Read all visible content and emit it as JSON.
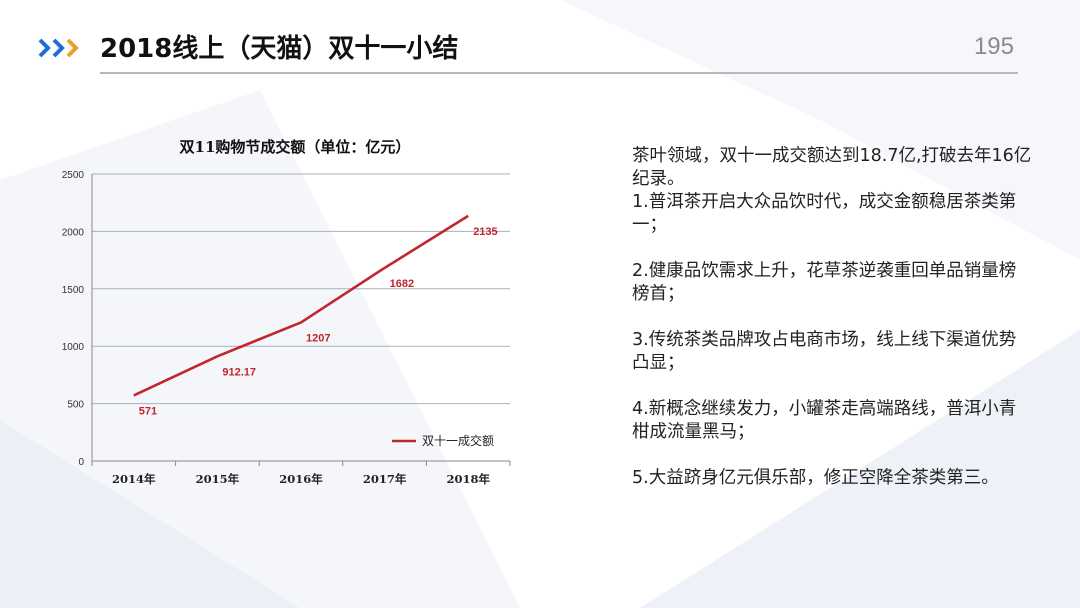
{
  "header": {
    "title": "2018线上（天猫）双十一小结",
    "page_number": "195",
    "accent_blue": "#1f6fd1",
    "accent_orange": "#f0a020"
  },
  "chart_data": {
    "type": "line",
    "title": "双11购物节成交额（单位：亿元）",
    "categories": [
      "2014年",
      "2015年",
      "2016年",
      "2017年",
      "2018年"
    ],
    "ylim": [
      0,
      2500
    ],
    "yticks": [
      "0",
      "500",
      "1000",
      "1500",
      "2000",
      "2500"
    ],
    "grid": true,
    "legend": "bottom-right",
    "series": [
      {
        "name": "双十一成交额",
        "color": "#c0262c",
        "values": [
          571,
          912.17,
          1207,
          1682,
          2135
        ],
        "labels": [
          "571",
          "912.17",
          "1207",
          "1682",
          "2135"
        ]
      }
    ]
  },
  "summary": {
    "intro": "茶叶领域，双十一成交额达到18.7亿,打破去年16亿纪录。",
    "points": [
      "1.普洱茶开启大众品饮时代，成交金额稳居茶类第一；",
      "2.健康品饮需求上升，花草茶逆袭重回单品销量榜榜首；",
      "3.传统茶类品牌攻占电商市场，线上线下渠道优势凸显；",
      "4.新概念继续发力，小罐茶走高端路线，普洱小青柑成流量黑马；",
      "5.大益跻身亿元俱乐部，修正空降全茶类第三。"
    ]
  }
}
